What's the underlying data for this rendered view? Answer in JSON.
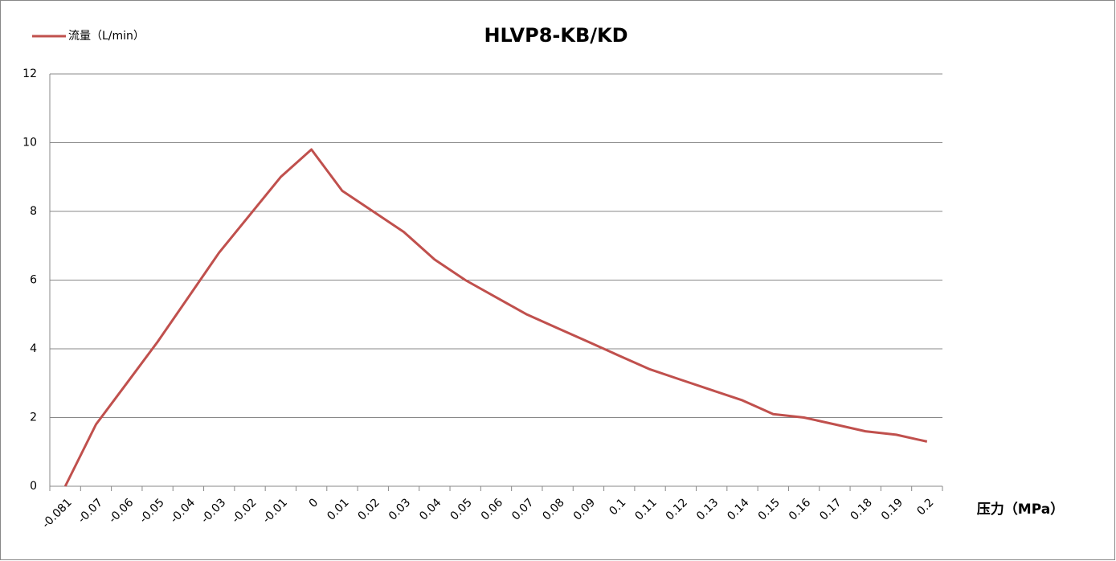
{
  "chart_data": {
    "type": "line",
    "title": "HLVP8-KB/KD",
    "x_label": "压力（MPa）",
    "categories": [
      "-0.081",
      "-0.07",
      "-0.06",
      "-0.05",
      "-0.04",
      "-0.03",
      "-0.02",
      "-0.01",
      "0",
      "0.01",
      "0.02",
      "0.03",
      "0.04",
      "0.05",
      "0.06",
      "0.07",
      "0.08",
      "0.09",
      "0.1",
      "0.11",
      "0.12",
      "0.13",
      "0.14",
      "0.15",
      "0.16",
      "0.17",
      "0.18",
      "0.19",
      "0.2"
    ],
    "series": [
      {
        "name": "流量（L/min）",
        "color": "#c0504d",
        "values": [
          0,
          1.8,
          3.0,
          4.2,
          5.5,
          6.8,
          7.9,
          9.0,
          9.8,
          8.6,
          8.0,
          7.4,
          6.6,
          6.0,
          5.5,
          5.0,
          4.6,
          4.2,
          3.8,
          3.4,
          3.1,
          2.8,
          2.5,
          2.1,
          2.0,
          1.8,
          1.6,
          1.5,
          1.3
        ]
      }
    ],
    "ylim": [
      0,
      12
    ],
    "yticks": [
      0,
      2,
      4,
      6,
      8,
      10,
      12
    ],
    "grid": true,
    "legend": "top-left"
  }
}
